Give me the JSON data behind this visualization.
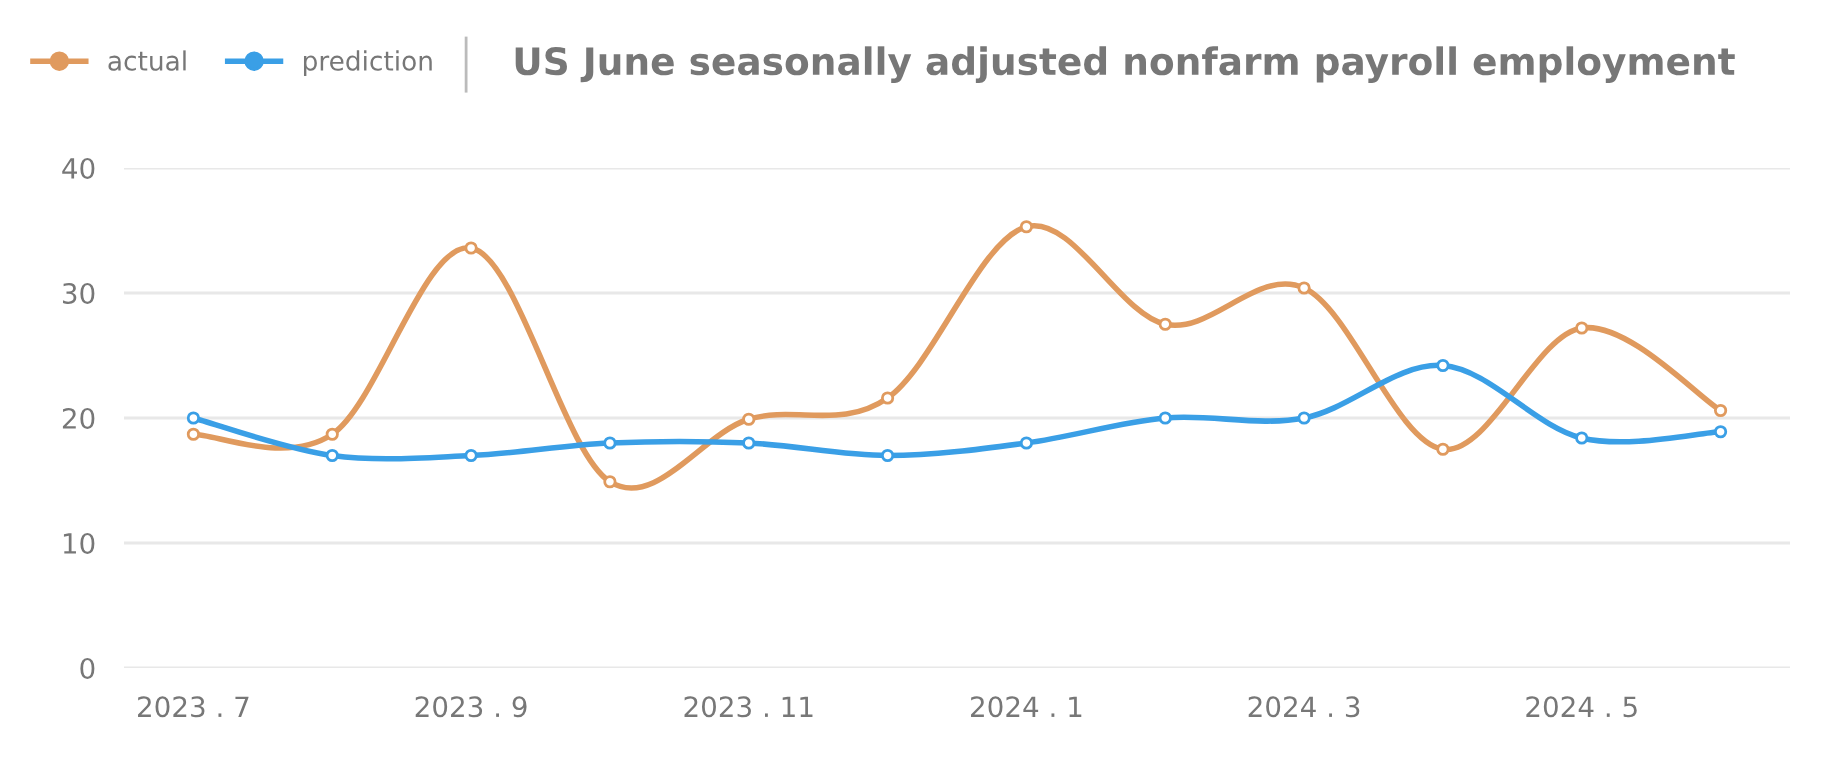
{
  "chart_data": {
    "type": "line",
    "title": "US June seasonally adjusted nonfarm payroll employment",
    "categories": [
      "2023 . 7",
      null,
      "2023 . 9",
      null,
      "2023 . 11",
      null,
      "2024 . 1",
      null,
      "2024 . 3",
      null,
      "2024 . 5",
      null
    ],
    "series": [
      {
        "name": "actual",
        "color": "#e09a5e",
        "values": [
          18.7,
          18.7,
          33.6,
          14.9,
          19.9,
          21.6,
          35.3,
          27.5,
          30.4,
          17.5,
          27.2,
          20.6
        ]
      },
      {
        "name": "prediction",
        "color": "#3a9fe6",
        "values": [
          20,
          17,
          17,
          18,
          18,
          17,
          18,
          20,
          20,
          24.2,
          18.4,
          18.9
        ]
      }
    ],
    "ylim": [
      0,
      40
    ],
    "yticks": [
      0,
      10,
      20,
      30,
      40
    ],
    "grid": "y",
    "legend": "top left",
    "marker": "circle",
    "line_style": "solid"
  }
}
